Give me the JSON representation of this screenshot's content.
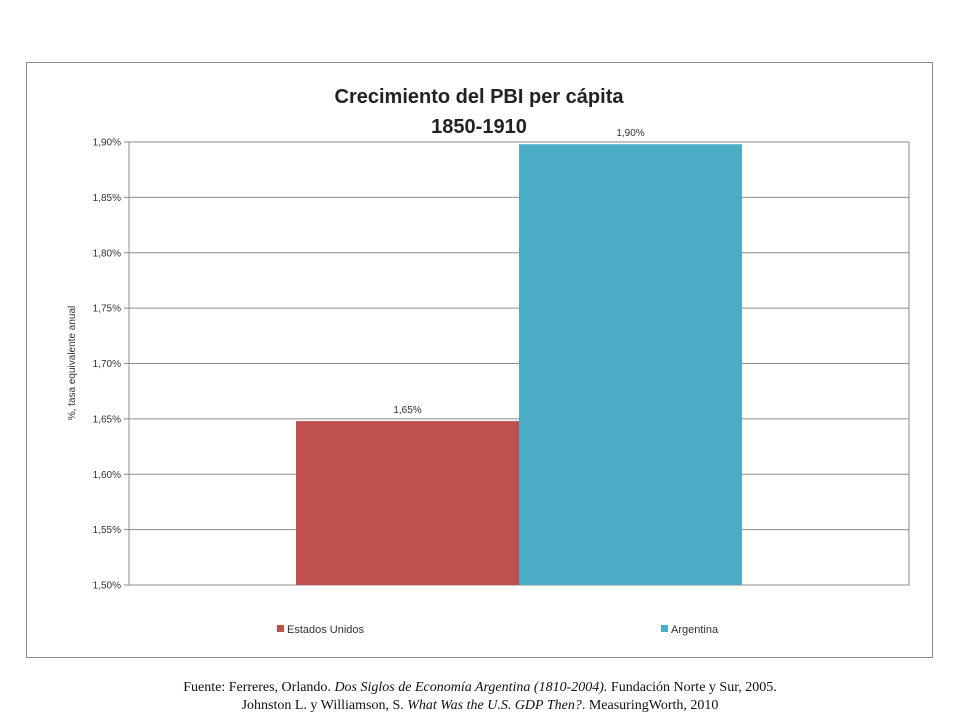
{
  "chart_data": {
    "type": "bar",
    "title": "Crecimiento del PBI per cápita",
    "subtitle": "1850-1910",
    "ylabel": "%, tasa equivalente anual",
    "xlabel": "",
    "ylim": [
      1.5,
      1.9
    ],
    "yticks": [
      "1,50%",
      "1,55%",
      "1,60%",
      "1,65%",
      "1,70%",
      "1,75%",
      "1,80%",
      "1,85%",
      "1,90%"
    ],
    "yticks_values": [
      1.5,
      1.55,
      1.6,
      1.65,
      1.7,
      1.75,
      1.8,
      1.85,
      1.9
    ],
    "grid": true,
    "legend_position": "bottom",
    "series": [
      {
        "name": "Estados Unidos",
        "value": 1.648,
        "label": "1,65%",
        "color": "#c0504d"
      },
      {
        "name": "Argentina",
        "value": 1.898,
        "label": "1,90%",
        "color": "#4bacc6"
      }
    ]
  },
  "source": {
    "line1_prefix": "Fuente: Ferreres, Orlando. ",
    "line1_title": "Dos Siglos de Economía Argentina (1810-2004).",
    "line1_suffix": " Fundación Norte y Sur, 2005.",
    "line2_prefix": "Johnston L. y Williamson,  S. ",
    "line2_title": "What Was the U.S. GDP Then?",
    "line2_suffix": ". MeasuringWorth, 2010"
  }
}
